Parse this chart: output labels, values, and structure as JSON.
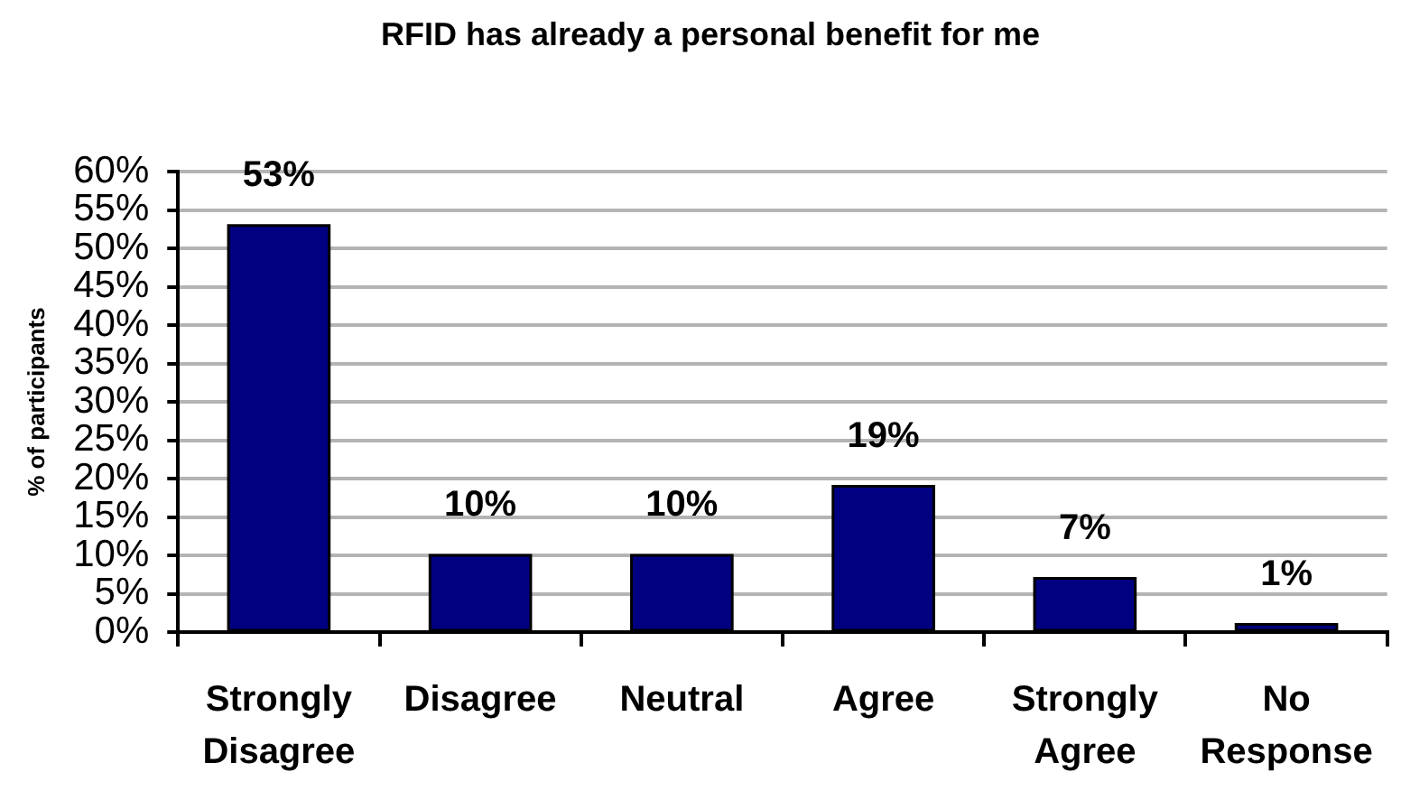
{
  "chart_data": {
    "type": "bar",
    "title": "RFID has already a personal benefit for me",
    "ylabel": "% of participants",
    "categories": [
      "Strongly Disagree",
      "Disagree",
      "Neutral",
      "Agree",
      "Strongly Agree",
      "No Response"
    ],
    "values": [
      53,
      10,
      10,
      19,
      7,
      1
    ],
    "color": "#000080",
    "value_labels": [
      "53%",
      "10%",
      "10%",
      "19%",
      "7%",
      "1%"
    ],
    "ylim": [
      0,
      60
    ],
    "yticks": [
      {
        "value": 0,
        "label": "0%"
      },
      {
        "value": 5,
        "label": "5%"
      },
      {
        "value": 10,
        "label": "10%"
      },
      {
        "value": 15,
        "label": "15%"
      },
      {
        "value": 20,
        "label": "20%"
      },
      {
        "value": 25,
        "label": "25%"
      },
      {
        "value": 30,
        "label": "30%"
      },
      {
        "value": 35,
        "label": "35%"
      },
      {
        "value": 40,
        "label": "40%"
      },
      {
        "value": 45,
        "label": "45%"
      },
      {
        "value": 50,
        "label": "50%"
      },
      {
        "value": 55,
        "label": "55%"
      },
      {
        "value": 60,
        "label": "60%"
      }
    ],
    "grid": "y"
  }
}
